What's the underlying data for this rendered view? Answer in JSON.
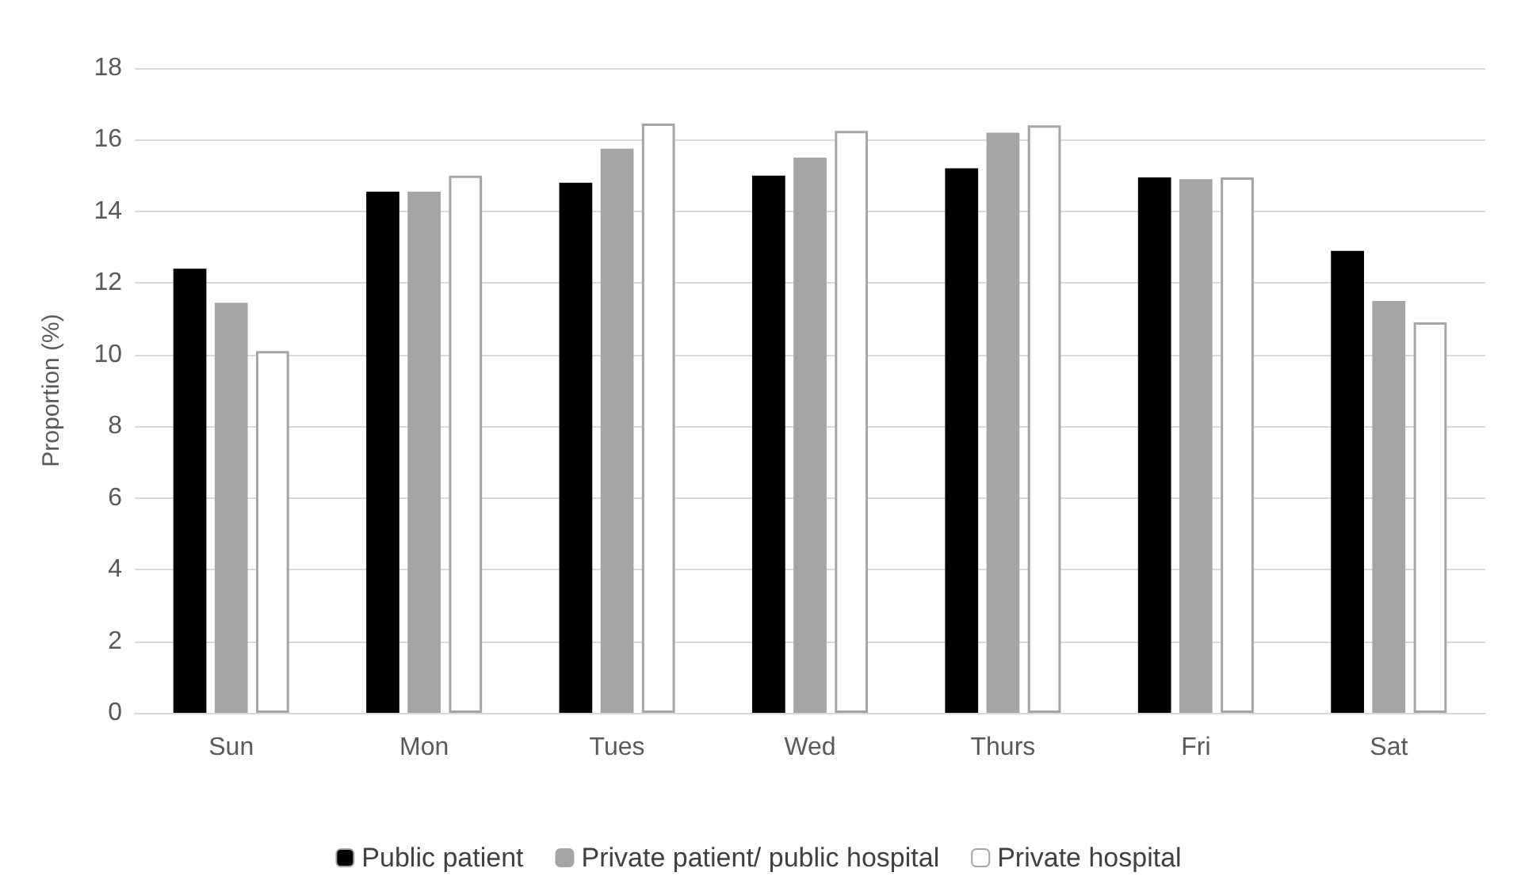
{
  "chart_data": {
    "type": "bar",
    "ylabel": "Proportion (%)",
    "categories": [
      "Sun",
      "Mon",
      "Tues",
      "Wed",
      "Thurs",
      "Fri",
      "Sat"
    ],
    "series": [
      {
        "name": "Public patient",
        "color": "#000000",
        "values": [
          12.4,
          14.55,
          14.8,
          15.0,
          15.2,
          14.95,
          12.9
        ]
      },
      {
        "name": "Private patient/ public hospital",
        "color": "#a5a5a5",
        "values": [
          11.45,
          14.55,
          15.75,
          15.5,
          16.2,
          14.9,
          11.5
        ]
      },
      {
        "name": "Private hospital",
        "color": "#ffffff",
        "values": [
          10.1,
          15.0,
          16.45,
          16.25,
          16.4,
          14.95,
          10.9
        ]
      }
    ],
    "ylim": [
      0,
      18
    ],
    "yticks": [
      0,
      2,
      4,
      6,
      8,
      10,
      12,
      14,
      16,
      18
    ],
    "grid": "y",
    "legend": "bottom"
  }
}
